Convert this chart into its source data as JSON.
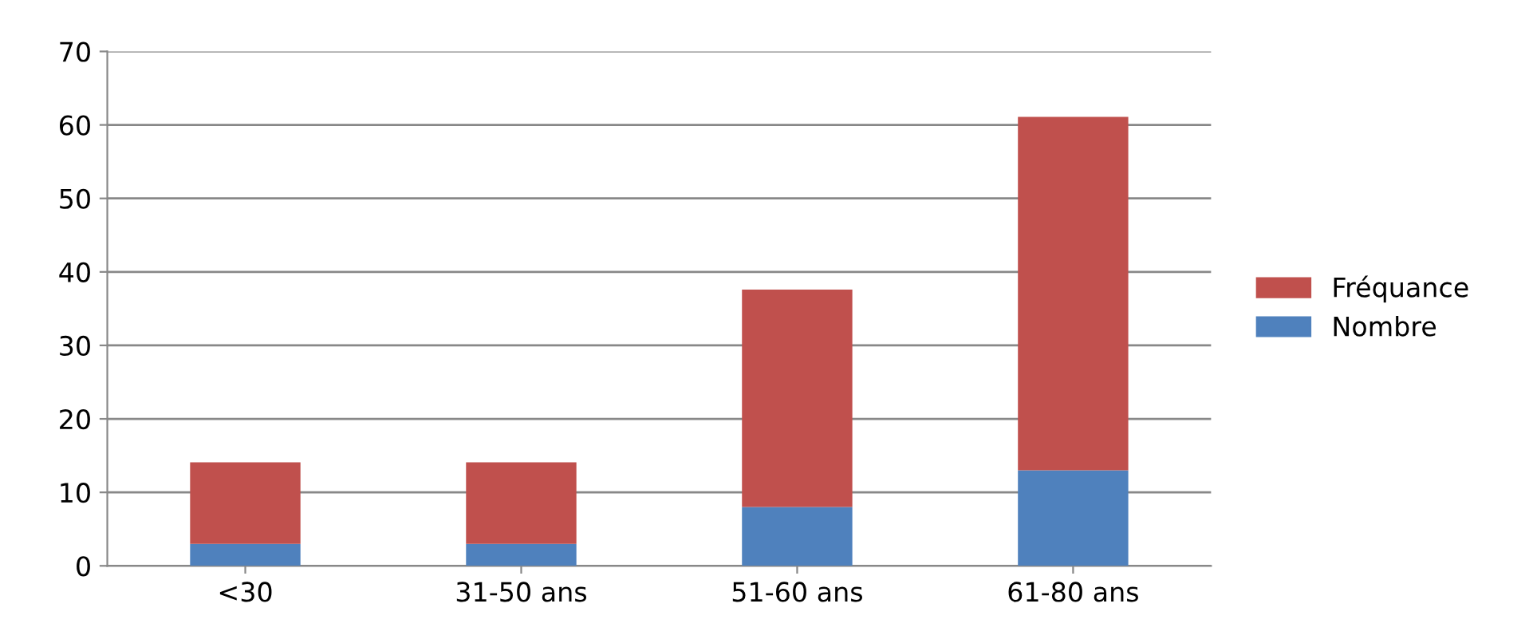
{
  "chart_data": {
    "type": "bar",
    "stacked": true,
    "categories": [
      "<30",
      "31-50 ans",
      "51-60 ans",
      "61-80 ans"
    ],
    "series": [
      {
        "name": "Nombre",
        "color": "#4f81bd",
        "values": [
          3,
          3,
          8,
          13
        ]
      },
      {
        "name": "Fréquance",
        "color": "#c0504d",
        "values": [
          11.1,
          11.1,
          29.6,
          48.1
        ]
      }
    ],
    "ylim": [
      0,
      70
    ],
    "yticks": [
      0,
      10,
      20,
      30,
      40,
      50,
      60,
      70
    ],
    "grid": "y",
    "legend": "right"
  }
}
